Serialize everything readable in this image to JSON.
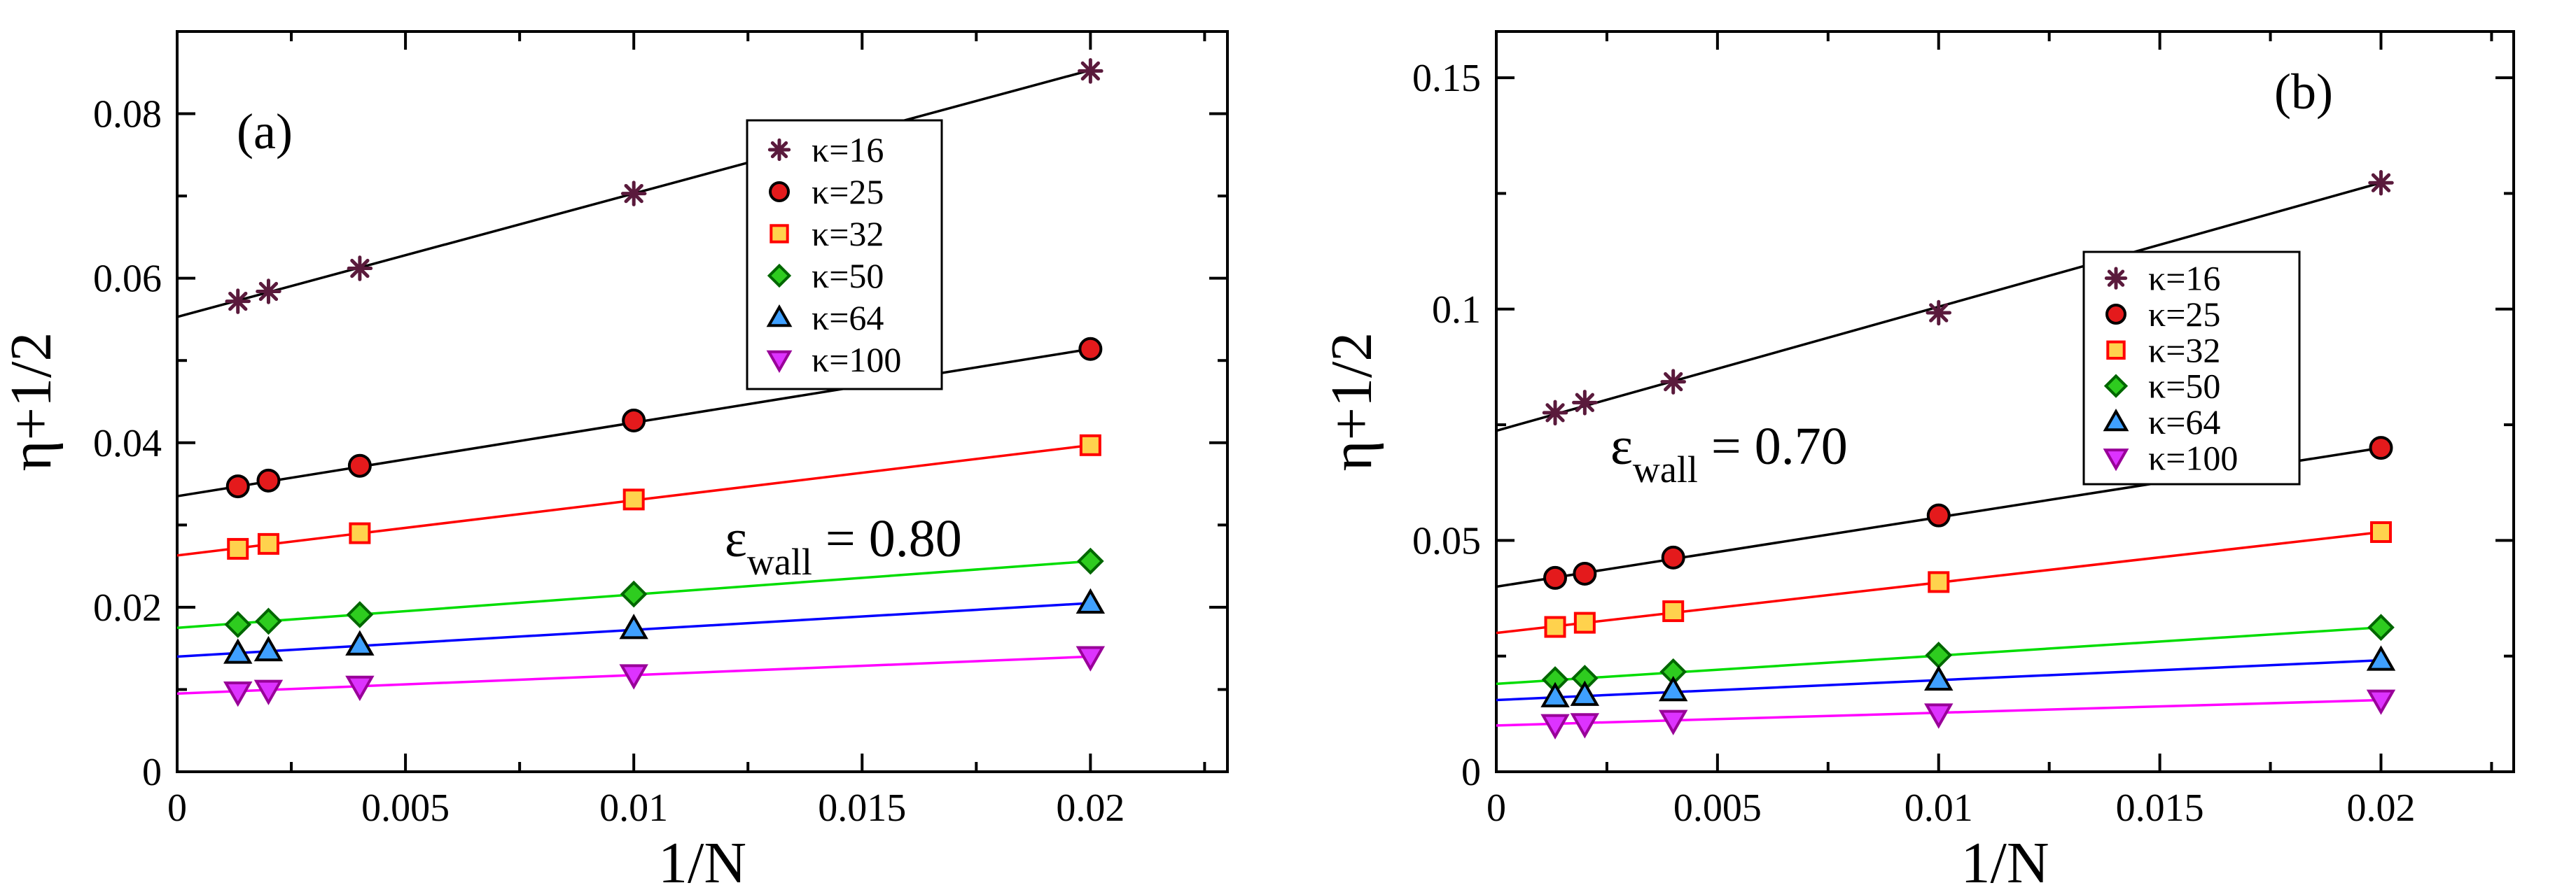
{
  "chart_data": [
    {
      "type": "scatter",
      "panel_label": "(a)",
      "xlabel": "1/N",
      "ylabel": "η+1/2",
      "xlim": [
        0,
        0.023
      ],
      "ylim": [
        0,
        0.09
      ],
      "xticks": [
        0,
        0.005,
        0.01,
        0.015,
        0.02
      ],
      "xtick_labels": [
        "0",
        "0.005",
        "0.01",
        "0.015",
        "0.02"
      ],
      "yticks": [
        0,
        0.02,
        0.04,
        0.06,
        0.08
      ],
      "ytick_labels": [
        "0",
        "0.02",
        "0.04",
        "0.06",
        "0.08"
      ],
      "annotation": {
        "symbol": "ε",
        "subscript": "wall",
        "value": " = 0.80"
      },
      "legend_position": "top-center",
      "x": [
        0.00133,
        0.002,
        0.004,
        0.01,
        0.02
      ],
      "series": [
        {
          "name": "κ=16",
          "marker": "star",
          "color": "#5a1a3c",
          "line_color": "#000000",
          "values": [
            0.0572,
            0.0584,
            0.0612,
            0.0703,
            0.0852
          ],
          "fit": [
            0.0553,
            0.0853
          ]
        },
        {
          "name": "κ=25",
          "marker": "circle",
          "color": "#e41a1c",
          "line_color": "#000000",
          "values": [
            0.0347,
            0.0354,
            0.0372,
            0.0427,
            0.0514
          ],
          "fit": [
            0.0335,
            0.0514
          ]
        },
        {
          "name": "κ=32",
          "marker": "square",
          "color": "#ffd24d",
          "edge": "#ff0000",
          "line_color": "#ff0000",
          "values": [
            0.0271,
            0.0277,
            0.029,
            0.0331,
            0.0397
          ],
          "fit": [
            0.0263,
            0.0397
          ]
        },
        {
          "name": "κ=50",
          "marker": "diamond",
          "color": "#2ecc1f",
          "line_color": "#00dd00",
          "values": [
            0.0179,
            0.0183,
            0.0191,
            0.0216,
            0.0256
          ],
          "fit": [
            0.0175,
            0.0256
          ]
        },
        {
          "name": "κ=64",
          "marker": "triangle-up",
          "color": "#3fa0ff",
          "line_color": "#0000ff",
          "values": [
            0.0144,
            0.0147,
            0.0154,
            0.0174,
            0.0205
          ],
          "fit": [
            0.014,
            0.0205
          ]
        },
        {
          "name": "κ=100",
          "marker": "triangle-down",
          "color": "#dd33ff",
          "line_color": "#ff00ff",
          "values": [
            0.0097,
            0.0099,
            0.0104,
            0.0118,
            0.014
          ],
          "fit": [
            0.0095,
            0.014
          ]
        }
      ]
    },
    {
      "type": "scatter",
      "panel_label": "(b)",
      "xlabel": "1/N",
      "ylabel": "η+1/2",
      "xlim": [
        0,
        0.023
      ],
      "ylim": [
        0,
        0.16
      ],
      "xticks": [
        0,
        0.005,
        0.01,
        0.015,
        0.02
      ],
      "xtick_labels": [
        "0",
        "0.005",
        "0.01",
        "0.015",
        "0.02"
      ],
      "yticks": [
        0,
        0.05,
        0.1,
        0.15
      ],
      "ytick_labels": [
        "0",
        "0.05",
        "0.1",
        "0.15"
      ],
      "annotation": {
        "symbol": "ε",
        "subscript": "wall",
        "value": " = 0.70"
      },
      "legend_position": "center-right",
      "x": [
        0.00133,
        0.002,
        0.004,
        0.01,
        0.02
      ],
      "series": [
        {
          "name": "κ=16",
          "marker": "star",
          "color": "#5a1a3c",
          "line_color": "#000000",
          "values": [
            0.0776,
            0.0798,
            0.0843,
            0.0992,
            0.1273
          ],
          "fit": [
            0.0737,
            0.1273
          ]
        },
        {
          "name": "κ=25",
          "marker": "circle",
          "color": "#e41a1c",
          "line_color": "#000000",
          "values": [
            0.0419,
            0.0428,
            0.0463,
            0.0554,
            0.07
          ],
          "fit": [
            0.04,
            0.07
          ]
        },
        {
          "name": "κ=32",
          "marker": "square",
          "color": "#ffd24d",
          "edge": "#ff0000",
          "line_color": "#ff0000",
          "values": [
            0.0313,
            0.0322,
            0.0347,
            0.041,
            0.0518
          ],
          "fit": [
            0.03,
            0.0518
          ]
        },
        {
          "name": "κ=50",
          "marker": "diamond",
          "color": "#2ecc1f",
          "line_color": "#00dd00",
          "values": [
            0.0199,
            0.0202,
            0.0216,
            0.0252,
            0.0312
          ],
          "fit": [
            0.019,
            0.0312
          ]
        },
        {
          "name": "κ=64",
          "marker": "triangle-up",
          "color": "#3fa0ff",
          "line_color": "#0000ff",
          "values": [
            0.0162,
            0.0165,
            0.0175,
            0.0198,
            0.0241
          ],
          "fit": [
            0.0155,
            0.0241
          ]
        },
        {
          "name": "κ=100",
          "marker": "triangle-down",
          "color": "#dd33ff",
          "line_color": "#ff00ff",
          "values": [
            0.0102,
            0.0104,
            0.0111,
            0.0125,
            0.0155
          ],
          "fit": [
            0.01,
            0.0155
          ]
        }
      ]
    }
  ]
}
